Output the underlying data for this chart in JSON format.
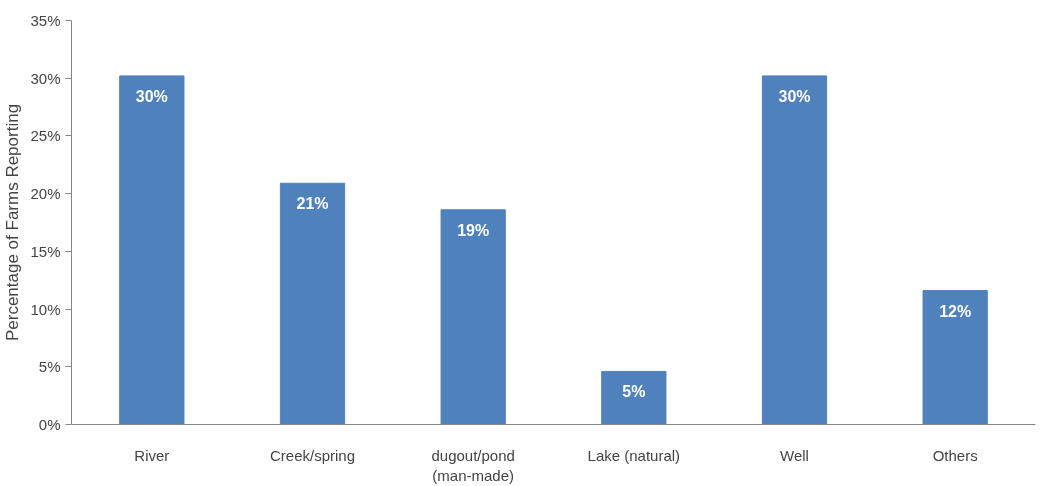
{
  "chart_data": {
    "type": "bar",
    "ylabel": "Percentage of Farms Reporting",
    "categories": [
      "River",
      "Creek/spring",
      "dugout/pond\n(man-made)",
      "Lake (natural)",
      "Well",
      "Others"
    ],
    "values": [
      30.2,
      20.9,
      18.6,
      4.6,
      30.2,
      11.6
    ],
    "value_labels": [
      "30%",
      "21%",
      "19%",
      "5%",
      "30%",
      "12%"
    ],
    "color": "#4f81bd",
    "ylim": [
      0,
      35
    ],
    "yticks": [
      {
        "value": 0,
        "label": "0%"
      },
      {
        "value": 5,
        "label": "5%"
      },
      {
        "value": 10,
        "label": "10%"
      },
      {
        "value": 15,
        "label": "15%"
      },
      {
        "value": 20,
        "label": "20%"
      },
      {
        "value": 25,
        "label": "25%"
      },
      {
        "value": 30,
        "label": "30%"
      },
      {
        "value": 35,
        "label": "35%"
      }
    ],
    "grid": false
  }
}
